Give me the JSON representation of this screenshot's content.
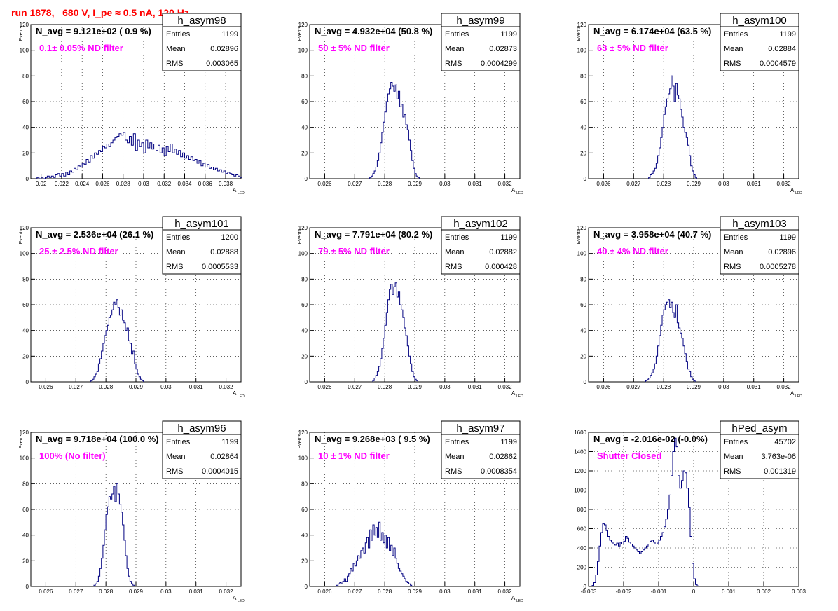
{
  "page": {
    "title": "run 1878,   680 V, I_pe ≈ 0.5 nA, 120 Hz"
  },
  "chart_data": [
    {
      "type": "bar",
      "name": "h_asym98",
      "xlabel_main": "A",
      "xlabel_sub": "LED",
      "ylabel": "Events",
      "xlim": [
        0.019,
        0.0395
      ],
      "ylim": [
        0,
        120
      ],
      "xticks": [
        0.02,
        0.022,
        0.024,
        0.026,
        0.028,
        0.03,
        0.032,
        0.034,
        0.036,
        0.038
      ],
      "xtick_labels": [
        "0.02",
        "0.022",
        "0.024",
        "0.026",
        "0.028",
        "0.03",
        "0.032",
        "0.034",
        "0.036",
        "0.038"
      ],
      "yticks": [
        0,
        20,
        40,
        60,
        80,
        100,
        120
      ],
      "ytick_labels": [
        "0",
        "20",
        "40",
        "60",
        "80",
        "100",
        "120"
      ],
      "grid": true,
      "header": "N_avg = 9.121e+02 ( 0.9 %)",
      "annotation": "0.1± 0.05% ND filter",
      "stats": {
        "title": "h_asym98",
        "rows": [
          [
            "Entries",
            "1199"
          ],
          [
            "Mean",
            "0.02896"
          ],
          [
            "RMS",
            "0.003065"
          ]
        ]
      },
      "bin_width": 0.0002,
      "values": [
        1,
        0,
        1,
        0,
        1,
        2,
        1,
        2,
        1,
        3,
        4,
        2,
        4,
        2,
        5,
        3,
        6,
        5,
        8,
        7,
        10,
        9,
        12,
        11,
        15,
        13,
        18,
        16,
        20,
        19,
        22,
        21,
        25,
        24,
        27,
        25,
        28,
        30,
        32,
        33,
        35,
        34,
        36,
        30,
        28,
        33,
        26,
        35,
        22,
        30,
        25,
        28,
        20,
        30,
        24,
        28,
        23,
        27,
        22,
        26,
        20,
        24,
        18,
        25,
        21,
        27,
        20,
        23,
        19,
        22,
        17,
        20,
        16,
        18,
        15,
        17,
        14,
        15,
        12,
        14,
        10,
        12,
        9,
        11,
        8,
        9,
        7,
        8,
        6,
        7,
        5,
        6,
        4,
        5,
        4,
        3,
        2,
        3,
        2,
        1
      ],
      "bin_start": 0.0196
    },
    {
      "type": "bar",
      "name": "h_asym99",
      "xlabel_main": "A",
      "xlabel_sub": "LED",
      "ylabel": "Events",
      "xlim": [
        0.0255,
        0.0325
      ],
      "ylim": [
        0,
        120
      ],
      "xticks": [
        0.026,
        0.027,
        0.028,
        0.029,
        0.03,
        0.031,
        0.032
      ],
      "xtick_labels": [
        "0.026",
        "0.027",
        "0.028",
        "0.029",
        "0.03",
        "0.031",
        "0.032"
      ],
      "yticks": [
        0,
        20,
        40,
        60,
        80,
        100,
        120
      ],
      "ytick_labels": [
        "0",
        "20",
        "40",
        "60",
        "80",
        "100",
        "120"
      ],
      "grid": true,
      "header": "N_avg = 4.932e+04 (50.8 %)",
      "annotation": "50 ± 5% ND filter",
      "stats": {
        "title": "h_asym99",
        "rows": [
          [
            "Entries",
            "1199"
          ],
          [
            "Mean",
            "0.02873"
          ],
          [
            "RMS",
            "0.0004299"
          ]
        ]
      },
      "bin_width": 5e-05,
      "bin_start": 0.0275,
      "values": [
        1,
        2,
        4,
        6,
        9,
        14,
        20,
        28,
        36,
        44,
        52,
        60,
        66,
        70,
        75,
        72,
        68,
        73,
        62,
        68,
        56,
        58,
        48,
        50,
        42,
        38,
        30,
        22,
        14,
        8,
        4,
        2,
        1
      ]
    },
    {
      "type": "bar",
      "name": "h_asym100",
      "xlabel_main": "A",
      "xlabel_sub": "LED",
      "ylabel": "Events",
      "xlim": [
        0.0255,
        0.0325
      ],
      "ylim": [
        0,
        120
      ],
      "xticks": [
        0.026,
        0.027,
        0.028,
        0.029,
        0.03,
        0.031,
        0.032
      ],
      "xtick_labels": [
        "0.026",
        "0.027",
        "0.028",
        "0.029",
        "0.03",
        "0.031",
        "0.032"
      ],
      "yticks": [
        0,
        20,
        40,
        60,
        80,
        100,
        120
      ],
      "ytick_labels": [
        "0",
        "20",
        "40",
        "60",
        "80",
        "100",
        "120"
      ],
      "grid": true,
      "header": "N_avg = 6.174e+04 (63.5 %)",
      "annotation": "63 ± 5% ND filter",
      "stats": {
        "title": "h_asym100",
        "rows": [
          [
            "Entries",
            "1199"
          ],
          [
            "Mean",
            "0.02884"
          ],
          [
            "RMS",
            "0.0004579"
          ]
        ]
      },
      "bin_width": 5e-05,
      "bin_start": 0.0275,
      "values": [
        1,
        3,
        4,
        6,
        8,
        12,
        18,
        24,
        32,
        40,
        50,
        56,
        62,
        66,
        70,
        80,
        72,
        60,
        74,
        65,
        62,
        54,
        48,
        40,
        36,
        32,
        26,
        18,
        10,
        6,
        3,
        1
      ]
    },
    {
      "type": "bar",
      "name": "h_asym101",
      "xlabel_main": "A",
      "xlabel_sub": "LED",
      "ylabel": "Events",
      "xlim": [
        0.0255,
        0.0325
      ],
      "ylim": [
        0,
        120
      ],
      "xticks": [
        0.026,
        0.027,
        0.028,
        0.029,
        0.03,
        0.031,
        0.032
      ],
      "xtick_labels": [
        "0.026",
        "0.027",
        "0.028",
        "0.029",
        "0.03",
        "0.031",
        "0.032"
      ],
      "yticks": [
        0,
        20,
        40,
        60,
        80,
        100,
        120
      ],
      "ytick_labels": [
        "0",
        "20",
        "40",
        "60",
        "80",
        "100",
        "120"
      ],
      "grid": true,
      "header": "N_avg = 2.536e+04 (26.1 %)",
      "annotation": "25 ± 2.5% ND filter",
      "stats": {
        "title": "h_asym101",
        "rows": [
          [
            "Entries",
            "1200"
          ],
          [
            "Mean",
            "0.02888"
          ],
          [
            "RMS",
            "0.0005533"
          ]
        ]
      },
      "bin_width": 5e-05,
      "bin_start": 0.0275,
      "values": [
        1,
        2,
        4,
        6,
        8,
        14,
        18,
        24,
        30,
        36,
        40,
        44,
        50,
        52,
        56,
        62,
        60,
        64,
        58,
        52,
        56,
        48,
        46,
        40,
        42,
        32,
        30,
        22,
        24,
        14,
        10,
        6,
        4,
        2,
        1
      ]
    },
    {
      "type": "bar",
      "name": "h_asym102",
      "xlabel_main": "A",
      "xlabel_sub": "LED",
      "ylabel": "Events",
      "xlim": [
        0.0255,
        0.0325
      ],
      "ylim": [
        0,
        120
      ],
      "xticks": [
        0.026,
        0.027,
        0.028,
        0.029,
        0.03,
        0.031,
        0.032
      ],
      "xtick_labels": [
        "0.026",
        "0.027",
        "0.028",
        "0.029",
        "0.03",
        "0.031",
        "0.032"
      ],
      "yticks": [
        0,
        20,
        40,
        60,
        80,
        100,
        120
      ],
      "ytick_labels": [
        "0",
        "20",
        "40",
        "60",
        "80",
        "100",
        "120"
      ],
      "grid": true,
      "header": "N_avg = 7.791e+04 (80.2 %)",
      "annotation": "79 ± 5% ND filter",
      "stats": {
        "title": "h_asym102",
        "rows": [
          [
            "Entries",
            "1199"
          ],
          [
            "Mean",
            "0.02882"
          ],
          [
            "RMS",
            "0.000428"
          ]
        ]
      },
      "bin_width": 5e-05,
      "bin_start": 0.0276,
      "values": [
        1,
        3,
        5,
        8,
        12,
        18,
        26,
        34,
        44,
        54,
        64,
        72,
        76,
        68,
        74,
        77,
        66,
        70,
        60,
        56,
        50,
        42,
        36,
        28,
        20,
        14,
        8,
        4,
        2,
        1
      ]
    },
    {
      "type": "bar",
      "name": "h_asym103",
      "xlabel_main": "A",
      "xlabel_sub": "LED",
      "ylabel": "Events",
      "xlim": [
        0.0255,
        0.0325
      ],
      "ylim": [
        0,
        120
      ],
      "xticks": [
        0.026,
        0.027,
        0.028,
        0.029,
        0.03,
        0.031,
        0.032
      ],
      "xtick_labels": [
        "0.026",
        "0.027",
        "0.028",
        "0.029",
        "0.03",
        "0.031",
        "0.032"
      ],
      "yticks": [
        0,
        20,
        40,
        60,
        80,
        100,
        120
      ],
      "ytick_labels": [
        "0",
        "20",
        "40",
        "60",
        "80",
        "100",
        "120"
      ],
      "grid": true,
      "header": "N_avg = 3.958e+04 (40.7 %)",
      "annotation": "40 ± 4% ND filter",
      "stats": {
        "title": "h_asym103",
        "rows": [
          [
            "Entries",
            "1199"
          ],
          [
            "Mean",
            "0.02896"
          ],
          [
            "RMS",
            "0.0005278"
          ]
        ]
      },
      "bin_width": 5e-05,
      "bin_start": 0.0274,
      "values": [
        1,
        2,
        3,
        5,
        7,
        10,
        14,
        20,
        28,
        36,
        44,
        52,
        56,
        60,
        62,
        64,
        58,
        62,
        54,
        50,
        60,
        46,
        42,
        38,
        34,
        28,
        22,
        16,
        10,
        8,
        4,
        2,
        1
      ]
    },
    {
      "type": "bar",
      "name": "h_asym96",
      "xlabel_main": "A",
      "xlabel_sub": "LED",
      "ylabel": "Events",
      "xlim": [
        0.0255,
        0.0325
      ],
      "ylim": [
        0,
        120
      ],
      "xticks": [
        0.026,
        0.027,
        0.028,
        0.029,
        0.03,
        0.031,
        0.032
      ],
      "xtick_labels": [
        "0.026",
        "0.027",
        "0.028",
        "0.029",
        "0.03",
        "0.031",
        "0.032"
      ],
      "yticks": [
        0,
        20,
        40,
        60,
        80,
        100,
        120
      ],
      "ytick_labels": [
        "0",
        "20",
        "40",
        "60",
        "80",
        "100",
        "120"
      ],
      "grid": true,
      "header": "N_avg = 9.718e+04 (100.0 %)",
      "annotation": "100% (No filter)",
      "stats": {
        "title": "h_asym96",
        "rows": [
          [
            "Entries",
            "1199"
          ],
          [
            "Mean",
            "0.02864"
          ],
          [
            "RMS",
            "0.0004015"
          ]
        ]
      },
      "bin_width": 5e-05,
      "bin_start": 0.0276,
      "values": [
        1,
        2,
        4,
        8,
        14,
        22,
        32,
        44,
        56,
        62,
        70,
        68,
        72,
        78,
        66,
        80,
        72,
        64,
        58,
        48,
        36,
        24,
        14,
        8,
        4,
        2,
        1
      ]
    },
    {
      "type": "bar",
      "name": "h_asym97",
      "xlabel_main": "A",
      "xlabel_sub": "LED",
      "ylabel": "Events",
      "xlim": [
        0.0255,
        0.0325
      ],
      "ylim": [
        0,
        120
      ],
      "xticks": [
        0.026,
        0.027,
        0.028,
        0.029,
        0.03,
        0.031,
        0.032
      ],
      "xtick_labels": [
        "0.026",
        "0.027",
        "0.028",
        "0.029",
        "0.03",
        "0.031",
        "0.032"
      ],
      "yticks": [
        0,
        20,
        40,
        60,
        80,
        100,
        120
      ],
      "ytick_labels": [
        "0",
        "20",
        "40",
        "60",
        "80",
        "100",
        "120"
      ],
      "grid": true,
      "header": "N_avg = 9.268e+03 ( 9.5 %)",
      "annotation": "10 ± 1% ND filter",
      "stats": {
        "title": "h_asym97",
        "rows": [
          [
            "Entries",
            "1199"
          ],
          [
            "Mean",
            "0.02862"
          ],
          [
            "RMS",
            "0.0008354"
          ]
        ]
      },
      "bin_width": 5e-05,
      "bin_start": 0.0264,
      "values": [
        1,
        2,
        3,
        2,
        4,
        6,
        4,
        8,
        10,
        14,
        12,
        18,
        16,
        20,
        24,
        22,
        28,
        30,
        26,
        34,
        38,
        30,
        44,
        36,
        48,
        40,
        46,
        38,
        50,
        36,
        42,
        34,
        40,
        30,
        38,
        28,
        32,
        24,
        30,
        22,
        18,
        14,
        12,
        10,
        8,
        6,
        4,
        3,
        2,
        1
      ]
    },
    {
      "type": "bar",
      "name": "hPed_asym",
      "xlabel_main": "",
      "xlabel_sub": "",
      "ylabel": "",
      "xlim": [
        -0.003,
        0.003
      ],
      "ylim": [
        0,
        1600
      ],
      "xticks": [
        -0.003,
        -0.002,
        -0.001,
        0,
        0.001,
        0.002,
        0.003
      ],
      "xtick_labels": [
        "-0.003",
        "-0.002",
        "-0.001",
        "0",
        "0.001",
        "0.002",
        "0.003"
      ],
      "yticks": [
        0,
        200,
        400,
        600,
        800,
        1000,
        1200,
        1400,
        1600
      ],
      "ytick_labels": [
        "0",
        "200",
        "400",
        "600",
        "800",
        "1000",
        "1200",
        "1400",
        "1600"
      ],
      "grid": true,
      "header": "N_avg = -2.016e-02 (-0.0%)",
      "annotation": "Shutter Closed",
      "stats": {
        "title": "hPed_asym",
        "rows": [
          [
            "Entries",
            "45702"
          ],
          [
            "Mean",
            "3.763e-06"
          ],
          [
            "RMS",
            "0.001319"
          ]
        ]
      },
      "bin_width": 5e-05,
      "bin_start": -0.0029,
      "values": [
        10,
        40,
        120,
        260,
        420,
        560,
        650,
        640,
        580,
        520,
        480,
        460,
        440,
        430,
        450,
        420,
        460,
        440,
        470,
        520,
        500,
        460,
        440,
        420,
        400,
        380,
        360,
        340,
        360,
        380,
        400,
        420,
        440,
        470,
        480,
        460,
        440,
        450,
        480,
        520,
        560,
        620,
        700,
        800,
        950,
        1150,
        1400,
        1540,
        1450,
        1150,
        1020,
        1100,
        1200,
        1180,
        1020,
        820,
        520,
        240,
        80,
        20,
        5
      ]
    }
  ]
}
